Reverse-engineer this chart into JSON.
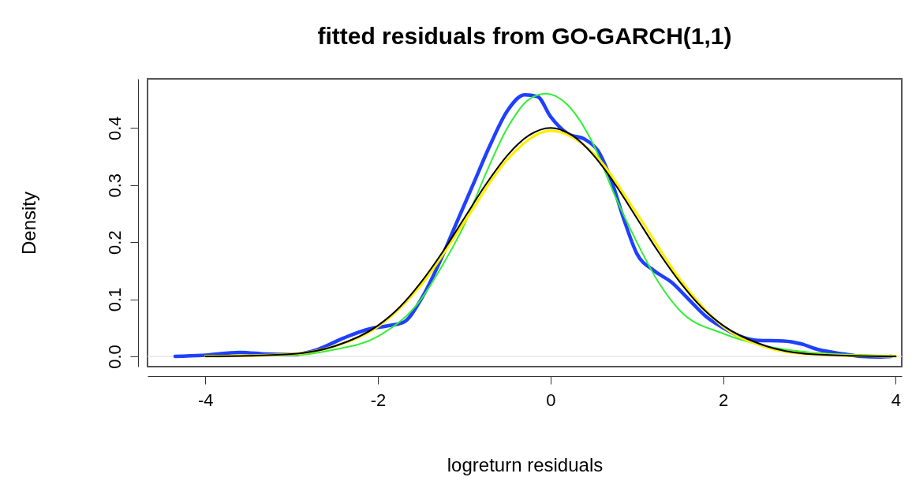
{
  "chart_data": {
    "type": "line",
    "title": "fitted residuals from GO-GARCH(1,1)",
    "xlabel": "logreturn residuals",
    "ylabel": "Density",
    "xlim": [
      -4.67,
      4.07
    ],
    "xticks": [
      -4,
      -2,
      0,
      2,
      4
    ],
    "ylim": [
      -0.018,
      0.486
    ],
    "yticks": [
      {
        "value": 0,
        "label": "0.0"
      },
      0.1,
      0.2,
      0.3,
      0.4
    ],
    "ref_lines": [
      {
        "axis": "y",
        "value": 0,
        "color": "#e6e6e6"
      }
    ],
    "series": [
      {
        "color": "#2040ff",
        "x": [
          -4.35,
          -4.0,
          -3.6,
          -3.3,
          -3.0,
          -2.7,
          -2.4,
          -2.1,
          -1.9,
          -1.7,
          -1.5,
          -1.3,
          -1.1,
          -0.9,
          -0.7,
          -0.5,
          -0.3,
          -0.15,
          0.0,
          0.2,
          0.4,
          0.55,
          0.7,
          0.85,
          1.0,
          1.2,
          1.4,
          1.6,
          1.8,
          2.0,
          2.2,
          2.4,
          2.7,
          2.9,
          3.1,
          3.4,
          3.6,
          3.8,
          3.95
        ],
        "values": [
          0.0,
          0.002,
          0.007,
          0.004,
          0.003,
          0.012,
          0.032,
          0.048,
          0.053,
          0.06,
          0.1,
          0.16,
          0.23,
          0.3,
          0.37,
          0.43,
          0.458,
          0.455,
          0.42,
          0.39,
          0.38,
          0.36,
          0.31,
          0.24,
          0.18,
          0.15,
          0.13,
          0.1,
          0.07,
          0.05,
          0.035,
          0.028,
          0.027,
          0.022,
          0.012,
          0.004,
          0.0,
          -0.001,
          0.0
        ]
      },
      {
        "color": "#33ee33",
        "x": [
          -4.0,
          -3.0,
          -2.5,
          -2.0,
          -1.5,
          -1.25,
          -1.0,
          -0.75,
          -0.5,
          -0.25,
          -0.05,
          0.2,
          0.5,
          0.75,
          1.0,
          1.25,
          1.5,
          2.0,
          2.5,
          3.0,
          3.5,
          4.0
        ],
        "values": [
          0.001,
          0.002,
          0.012,
          0.035,
          0.1,
          0.16,
          0.23,
          0.32,
          0.4,
          0.45,
          0.46,
          0.44,
          0.37,
          0.28,
          0.2,
          0.13,
          0.08,
          0.04,
          0.018,
          0.007,
          0.003,
          0.001
        ]
      },
      {
        "color": "#ffee00",
        "x": [
          -4.0,
          -3.0,
          -2.5,
          -2.0,
          -1.5,
          -1.0,
          -0.5,
          0.0,
          0.5,
          1.0,
          1.5,
          2.0,
          2.5,
          3.0,
          4.0
        ],
        "values": [
          0.0,
          0.004,
          0.018,
          0.052,
          0.125,
          0.235,
          0.345,
          0.395,
          0.355,
          0.25,
          0.135,
          0.052,
          0.016,
          0.004,
          0.0
        ]
      },
      {
        "color": "#000000",
        "x": [
          -4.0,
          -3.5,
          -3.0,
          -2.5,
          -2.0,
          -1.75,
          -1.5,
          -1.25,
          -1.0,
          -0.75,
          -0.5,
          -0.25,
          0.0,
          0.25,
          0.5,
          0.75,
          1.0,
          1.25,
          1.5,
          1.75,
          2.0,
          2.5,
          3.0,
          3.5,
          4.0
        ],
        "values": [
          0.0,
          0.001,
          0.004,
          0.018,
          0.054,
          0.086,
          0.13,
          0.183,
          0.242,
          0.301,
          0.352,
          0.387,
          0.4,
          0.387,
          0.352,
          0.301,
          0.242,
          0.183,
          0.13,
          0.086,
          0.054,
          0.018,
          0.004,
          0.001,
          0.0
        ]
      }
    ]
  }
}
